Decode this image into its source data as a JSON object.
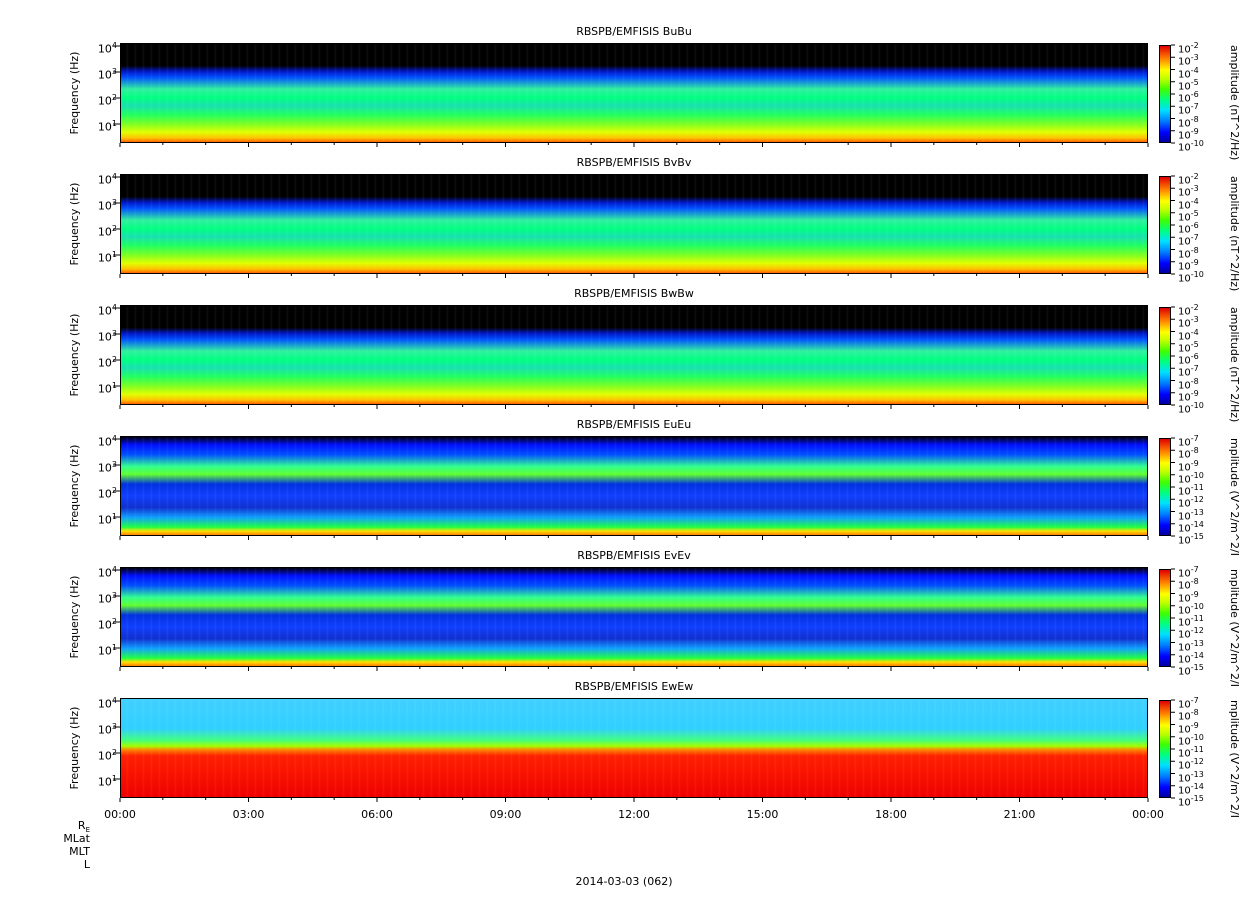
{
  "chart_data": [
    {
      "type": "heatmap",
      "title": "RBSPB/EMFISIS  BuBu",
      "ylabel": "Frequency (Hz)",
      "yscale": "log",
      "yticks": [
        "10",
        "10",
        "10",
        "10"
      ],
      "ytick_exp": [
        "1",
        "2",
        "3",
        "4"
      ],
      "colorbar": {
        "label": "amplitude (nT^2/Hz)",
        "scale": "log",
        "tick_base": "10",
        "tick_exp": [
          "-2",
          "-3",
          "-4",
          "-5",
          "-6",
          "-7",
          "-8",
          "-9",
          "-10"
        ]
      }
    },
    {
      "type": "heatmap",
      "title": "RBSPB/EMFISIS  BvBv",
      "ylabel": "Frequency (Hz)",
      "yscale": "log",
      "yticks": [
        "10",
        "10",
        "10",
        "10"
      ],
      "ytick_exp": [
        "1",
        "2",
        "3",
        "4"
      ],
      "colorbar": {
        "label": "amplitude (nT^2/Hz)",
        "scale": "log",
        "tick_base": "10",
        "tick_exp": [
          "-2",
          "-3",
          "-4",
          "-5",
          "-6",
          "-7",
          "-8",
          "-9",
          "-10"
        ]
      }
    },
    {
      "type": "heatmap",
      "title": "RBSPB/EMFISIS  BwBw",
      "ylabel": "Frequency (Hz)",
      "yscale": "log",
      "yticks": [
        "10",
        "10",
        "10",
        "10"
      ],
      "ytick_exp": [
        "1",
        "2",
        "3",
        "4"
      ],
      "colorbar": {
        "label": "amplitude (nT^2/Hz)",
        "scale": "log",
        "tick_base": "10",
        "tick_exp": [
          "-2",
          "-3",
          "-4",
          "-5",
          "-6",
          "-7",
          "-8",
          "-9",
          "-10"
        ]
      }
    },
    {
      "type": "heatmap",
      "title": "RBSPB/EMFISIS  EuEu",
      "ylabel": "Frequency (Hz)",
      "yscale": "log",
      "yticks": [
        "10",
        "10",
        "10",
        "10"
      ],
      "ytick_exp": [
        "1",
        "2",
        "3",
        "4"
      ],
      "colorbar": {
        "label": "mplitude (V^2/m^2/I",
        "scale": "log",
        "tick_base": "10",
        "tick_exp": [
          "-7",
          "-8",
          "-9",
          "-10",
          "-11",
          "-12",
          "-13",
          "-14",
          "-15"
        ]
      }
    },
    {
      "type": "heatmap",
      "title": "RBSPB/EMFISIS  EvEv",
      "ylabel": "Frequency (Hz)",
      "yscale": "log",
      "yticks": [
        "10",
        "10",
        "10",
        "10"
      ],
      "ytick_exp": [
        "1",
        "2",
        "3",
        "4"
      ],
      "colorbar": {
        "label": "mplitude (V^2/m^2/I",
        "scale": "log",
        "tick_base": "10",
        "tick_exp": [
          "-7",
          "-8",
          "-9",
          "-10",
          "-11",
          "-12",
          "-13",
          "-14",
          "-15"
        ]
      }
    },
    {
      "type": "heatmap",
      "title": "RBSPB/EMFISIS  EwEw",
      "ylabel": "Frequency (Hz)",
      "yscale": "log",
      "yticks": [
        "10",
        "10",
        "10",
        "10"
      ],
      "ytick_exp": [
        "1",
        "2",
        "3",
        "4"
      ],
      "colorbar": {
        "label": "mplitude (V^2/m^2/I",
        "scale": "log",
        "tick_base": "10",
        "tick_exp": [
          "-7",
          "-8",
          "-9",
          "-10",
          "-11",
          "-12",
          "-13",
          "-14",
          "-15"
        ]
      }
    }
  ],
  "x_axis": {
    "ticks": [
      "00:00",
      "03:00",
      "06:00",
      "09:00",
      "12:00",
      "15:00",
      "18:00",
      "21:00",
      "00:00"
    ]
  },
  "ephemeris_labels": {
    "re": "R",
    "re_sub": "E",
    "mlat": "MLat",
    "mlt": "MLT",
    "l": "L"
  },
  "date_label": "2014-03-03 (062)"
}
